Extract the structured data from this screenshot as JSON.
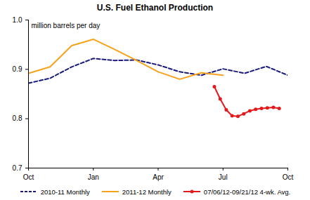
{
  "chart_data": {
    "type": "line",
    "title": "U.S. Fuel Ethanol Production",
    "ylabel": "million barrels per day",
    "xlim": [
      0,
      12
    ],
    "xticks": [
      {
        "value": 0,
        "label": "Oct"
      },
      {
        "value": 3,
        "label": "Jan"
      },
      {
        "value": 6,
        "label": "Apr"
      },
      {
        "value": 9,
        "label": "Jul"
      },
      {
        "value": 12,
        "label": "Oct"
      }
    ],
    "ylim": [
      0.7,
      1
    ],
    "yticks": [
      0.7,
      0.8,
      0.9,
      {
        "value": 1,
        "label": "1.0"
      }
    ],
    "grid": false,
    "legend": "bottom",
    "series": [
      {
        "name": "2010-11 Monthly",
        "color": "#1a1a80",
        "line_style": "dashed",
        "x": [
          0,
          1,
          2,
          3,
          4,
          5,
          6,
          7,
          8,
          9,
          10,
          11,
          12
        ],
        "values": [
          0.872,
          0.882,
          0.905,
          0.922,
          0.918,
          0.919,
          0.909,
          0.895,
          0.888,
          0.901,
          0.892,
          0.906,
          0.888
        ]
      },
      {
        "name": "2011-12 Monthly",
        "color": "#f7a21b",
        "line_style": "solid",
        "x": [
          0,
          1,
          2,
          3,
          4,
          5,
          6,
          7,
          8,
          9
        ],
        "values": [
          0.892,
          0.905,
          0.948,
          0.961,
          0.94,
          0.918,
          0.895,
          0.88,
          0.893,
          0.888
        ]
      },
      {
        "name": "07/06/12-09/21/12 4-wk. Avg.",
        "color": "#e31a1c",
        "line_style": "solid",
        "marker": "circle",
        "x": [
          8.6,
          8.87,
          9.15,
          9.42,
          9.69,
          9.96,
          10.24,
          10.51,
          10.78,
          11.05,
          11.33,
          11.6
        ],
        "values": [
          0.865,
          0.84,
          0.818,
          0.806,
          0.805,
          0.81,
          0.816,
          0.819,
          0.821,
          0.822,
          0.823,
          0.821
        ]
      }
    ]
  }
}
